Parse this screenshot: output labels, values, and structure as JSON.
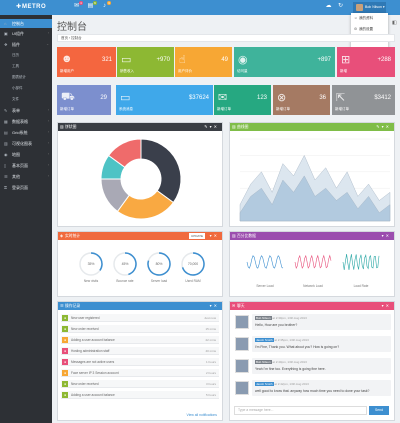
{
  "app": {
    "brand": "METRO"
  },
  "topbar": {
    "badges": {
      "mail": "4",
      "tasks": "9",
      "alerts": "3"
    },
    "user_name": "Bob Nilson"
  },
  "user_menu": {
    "items": [
      {
        "label": "我的资料",
        "icon": "user-icon"
      },
      {
        "label": "我的设置",
        "icon": "settings-icon"
      },
      {
        "label": "退出",
        "icon": "logout-icon"
      }
    ]
  },
  "sidebar": {
    "items": [
      {
        "label": "控制台",
        "icon": "dashboard-icon"
      },
      {
        "label": "UI组件",
        "icon": "component-icon"
      },
      {
        "label": "插件",
        "icon": "plugin-icon"
      },
      {
        "label": "表单",
        "icon": "form-icon"
      },
      {
        "label": "数据表格",
        "icon": "table-icon"
      },
      {
        "label": "Grid系统",
        "icon": "grid-icon"
      },
      {
        "label": "可视化图表",
        "icon": "chart-icon"
      },
      {
        "label": "地图",
        "icon": "map-icon"
      },
      {
        "label": "基本页面",
        "icon": "page-icon"
      },
      {
        "label": "其他",
        "icon": "other-icon"
      },
      {
        "label": "登录页面",
        "icon": "login-icon"
      }
    ],
    "subitems": [
      "日历",
      "工具",
      "图表统计",
      "小部件",
      "文件"
    ]
  },
  "page": {
    "title": "控制台",
    "subtitle": "",
    "breadcrumb": [
      "首页",
      "控制台"
    ]
  },
  "stats": [
    {
      "label": "新增用户",
      "value": "321",
      "color": "#f4663f",
      "icon": "users-icon"
    },
    {
      "label": "销售收入",
      "value": "+970",
      "color": "#8db833",
      "icon": "money-icon"
    },
    {
      "label": "用户评价",
      "value": "49",
      "color": "#f7a734",
      "icon": "thumbs-up-icon"
    },
    {
      "label": "访问量",
      "value": "+897",
      "color": "#3fb39b",
      "icon": "eye-icon"
    },
    {
      "label": "新增",
      "value": "+288",
      "color": "#e84f7a",
      "icon": "cart-icon"
    },
    {
      "label": "新增订单",
      "value": "29",
      "color": "#7c8fce",
      "icon": "truck-icon"
    },
    {
      "label": "系统消息",
      "value": "$37624",
      "color": "#3fa8ea",
      "icon": "money-icon"
    },
    {
      "label": "新增订单",
      "value": "123",
      "color": "#26a881",
      "icon": "mail-icon"
    },
    {
      "label": "新增订单",
      "value": "36",
      "color": "#a57a63",
      "icon": "close-icon"
    },
    {
      "label": "新增订单",
      "value": "$3412",
      "color": "#909396",
      "icon": "external-link-icon"
    }
  ],
  "panels": {
    "pie": {
      "title": "饼状图",
      "color": "#3a3e44"
    },
    "area": {
      "title": "曲线图",
      "color": "#7fbd48"
    },
    "gauges": {
      "title": "实时统计",
      "color": "#f06a3e",
      "action": "UPDATE"
    },
    "sparks": {
      "title": "百分比数据",
      "color": "#9b4dae"
    },
    "tasks": {
      "title": "操作记录",
      "color": "#3d8fd0",
      "footer": "View all notifications"
    },
    "chat": {
      "title": "聊天",
      "color": "#e84f7a",
      "placeholder": "Type a message here...",
      "send": "Send"
    }
  },
  "chart_data": [
    {
      "type": "pie",
      "values": [
        35,
        25,
        15,
        10,
        15
      ],
      "colors": [
        "#3a3f4b",
        "#f9a942",
        "#a9a9b5",
        "#4ec3c5",
        "#ef6b6b"
      ]
    },
    {
      "type": "area",
      "series": [
        {
          "values": [
            20,
            45,
            60,
            35,
            70,
            55,
            80,
            50,
            65,
            40,
            60,
            30,
            45,
            25,
            35
          ]
        },
        {
          "values": [
            10,
            30,
            40,
            20,
            50,
            35,
            55,
            30,
            40,
            25,
            35,
            15,
            30,
            10,
            20
          ]
        }
      ],
      "colors": [
        "#d9e4ee",
        "#aec8de"
      ]
    },
    {
      "type": "gauge",
      "items": [
        {
          "label": "New visits",
          "value": "35%",
          "fraction": 0.35
        },
        {
          "label": "Bounce rate",
          "value": "45%",
          "fraction": 0.45
        },
        {
          "label": "Server load",
          "value": "80%",
          "fraction": 0.8
        },
        {
          "label": "Used RAM",
          "value": "70,000",
          "fraction": 0.7
        }
      ],
      "color": "#3d8fd0"
    }
  ],
  "sparklines": [
    {
      "label": "Server Load",
      "color": "#3d8fd0"
    },
    {
      "label": "Network Load",
      "color": "#e84f7a"
    },
    {
      "label": "Load Rate",
      "color": "#2aa7a5"
    }
  ],
  "tasks": [
    {
      "text": "New user registered",
      "time": "Just now",
      "color": "#8db833",
      "icon": "user-icon"
    },
    {
      "text": "New order received",
      "time": "15 mins",
      "color": "#8db833",
      "icon": "cart-icon"
    },
    {
      "text": "Adding a user account balance",
      "time": "22 mins",
      "color": "#f7a734",
      "icon": "money-icon"
    },
    {
      "text": "Hosting administration staff",
      "time": "40 mins",
      "color": "#e84f7a",
      "icon": "user-icon"
    },
    {
      "text": "Messages are not active users",
      "time": "1 hours",
      "color": "#e84f7a",
      "icon": "mail-icon"
    },
    {
      "text": "Face server IP 3 Session account",
      "time": "2 hours",
      "color": "#f7a734",
      "icon": "server-icon"
    },
    {
      "text": "New order received",
      "time": "3 hours",
      "color": "#8db833",
      "icon": "cart-icon"
    },
    {
      "text": "Adding a user account balance",
      "time": "5 hours",
      "color": "#8db833",
      "icon": "money-icon"
    }
  ],
  "chat": [
    {
      "name": "Bob Nilson",
      "meta": "at 2:30pm, 13th Aug 2013",
      "text": "Hello, How are you brother?",
      "name_color": "#7a8088"
    },
    {
      "name": "Jacob Smith",
      "meta": "at 2:35pm, 13th Aug 2013",
      "text": "I'm Fine, Thank you. What about you? How is going on?",
      "name_color": "#3d8fd0"
    },
    {
      "name": "Bob Nilson",
      "meta": "at 2:40pm, 13th Aug 2013",
      "text": "Yeah I'm fine too. Everything is going fine here.",
      "name_color": "#7a8088"
    },
    {
      "name": "Jacob Smith",
      "meta": "at 2:42pm, 13th Aug 2013",
      "text": "well good to know that. anyway how much time you need to done your task?",
      "name_color": "#3d8fd0"
    }
  ]
}
